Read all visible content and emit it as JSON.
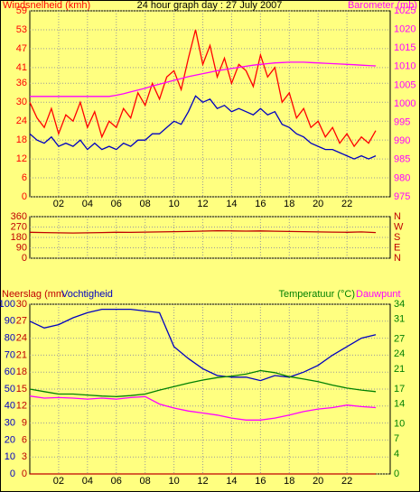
{
  "chart_data": [
    {
      "type": "line",
      "title": "24 hour graph day : 27 July 2007",
      "y_label": "Windsnelheid (kmh)",
      "y2_label": "Barometer (mb)",
      "x": [
        0,
        0.5,
        1,
        1.5,
        2,
        2.5,
        3,
        3.5,
        4,
        4.5,
        5,
        5.5,
        6,
        6.5,
        7,
        7.5,
        8,
        8.5,
        9,
        9.5,
        10,
        10.5,
        11,
        11.5,
        12,
        12.5,
        13,
        13.5,
        14,
        14.5,
        15,
        15.5,
        16,
        16.5,
        17,
        17.5,
        18,
        18.5,
        19,
        19.5,
        20,
        20.5,
        21,
        21.5,
        22,
        22.5,
        23,
        23.5,
        24
      ],
      "xlim": [
        0,
        25
      ],
      "xticks": [
        {
          "value": 2,
          "label": "02"
        },
        {
          "value": 4,
          "label": "04"
        },
        {
          "value": 6,
          "label": "06"
        },
        {
          "value": 8,
          "label": "08"
        },
        10,
        12,
        14,
        16,
        18,
        20,
        22
      ],
      "ylim": [
        0,
        59
      ],
      "yticks": [
        0,
        6,
        12,
        18,
        24,
        30,
        36,
        41,
        47,
        53,
        59
      ],
      "y2lim": [
        975,
        1025
      ],
      "y2ticks": [
        975,
        980,
        985,
        990,
        995,
        1000,
        1005,
        1010,
        1015,
        1020,
        1025
      ],
      "grid": true,
      "series": [
        {
          "color": "#ff0000",
          "values": [
            30,
            25,
            22,
            28,
            20,
            26,
            24,
            30,
            22,
            27,
            19,
            24,
            22,
            28,
            25,
            33,
            29,
            36,
            31,
            38,
            40,
            34,
            44,
            53,
            42,
            48,
            38,
            44,
            36,
            42,
            40,
            35,
            45,
            38,
            41,
            30,
            33,
            25,
            28,
            22,
            24,
            19,
            22,
            17,
            20,
            16,
            19,
            17,
            21
          ]
        },
        {
          "color": "#0000c0",
          "values": [
            20,
            18,
            17,
            19,
            16,
            17,
            16,
            18,
            15,
            17,
            15,
            16,
            15,
            17,
            16,
            18,
            18,
            20,
            20,
            22,
            24,
            23,
            27,
            32,
            30,
            31,
            28,
            29,
            27,
            28,
            27,
            26,
            28,
            26,
            27,
            23,
            22,
            20,
            19,
            17,
            16,
            15,
            15,
            14,
            13,
            12,
            13,
            12,
            13
          ]
        },
        {
          "color": "#ff00ff",
          "axis": "y2",
          "values": [
            1002,
            1002,
            1002,
            1002,
            1002,
            1002,
            1002,
            1002,
            1002,
            1002,
            1002,
            1002,
            1002.3,
            1002.7,
            1003.2,
            1003.7,
            1004.2,
            1004.8,
            1005.3,
            1005.8,
            1006.3,
            1006.8,
            1007.3,
            1007.7,
            1008.1,
            1008.5,
            1008.9,
            1009.2,
            1009.5,
            1009.8,
            1010.1,
            1010.4,
            1010.6,
            1010.8,
            1011,
            1011.1,
            1011.2,
            1011.2,
            1011.2,
            1011.1,
            1011,
            1010.9,
            1010.8,
            1010.7,
            1010.6,
            1010.5,
            1010.4,
            1010.3,
            1010.2
          ]
        }
      ]
    },
    {
      "type": "line",
      "x": [
        0,
        1,
        2,
        3,
        4,
        5,
        6,
        7,
        8,
        9,
        10,
        11,
        12,
        13,
        14,
        15,
        16,
        17,
        18,
        19,
        20,
        21,
        22,
        23,
        24
      ],
      "xlim": [
        0,
        25
      ],
      "ylim": [
        0,
        360
      ],
      "yticks": [
        0,
        90,
        180,
        270,
        360
      ],
      "y2lim": [
        0,
        360
      ],
      "y2ticks": [
        {
          "value": 0,
          "label": "N"
        },
        {
          "value": 90,
          "label": "E"
        },
        {
          "value": 180,
          "label": "S"
        },
        {
          "value": 270,
          "label": "W"
        },
        {
          "value": 360,
          "label": "N"
        }
      ],
      "grid": true,
      "series": [
        {
          "color": "#c00000",
          "values": [
            225,
            222,
            220,
            218,
            220,
            222,
            225,
            224,
            226,
            228,
            230,
            232,
            235,
            238,
            236,
            235,
            236,
            234,
            232,
            230,
            228,
            226,
            225,
            228,
            222
          ]
        }
      ]
    },
    {
      "type": "line",
      "x": [
        0,
        1,
        2,
        3,
        4,
        5,
        6,
        7,
        8,
        9,
        10,
        11,
        12,
        13,
        14,
        15,
        16,
        17,
        18,
        19,
        20,
        21,
        22,
        23,
        24
      ],
      "xlim": [
        0,
        25
      ],
      "xticks": [
        {
          "value": 2,
          "label": "02"
        },
        {
          "value": 4,
          "label": "04"
        },
        {
          "value": 6,
          "label": "06"
        },
        {
          "value": 8,
          "label": "08"
        },
        10,
        12,
        14,
        16,
        18,
        20,
        22
      ],
      "ylim": [
        0,
        30
      ],
      "yticks": [
        0,
        3,
        6,
        9,
        12,
        15,
        18,
        21,
        24,
        27,
        30
      ],
      "y2lim": [
        0,
        100
      ],
      "y2ticks": [
        0,
        10,
        20,
        30,
        40,
        50,
        60,
        70,
        80,
        90,
        100
      ],
      "y3lim": [
        0,
        34
      ],
      "y3ticks": [
        0,
        4,
        7,
        10,
        14,
        17,
        21,
        24,
        27,
        31,
        34
      ],
      "grid": true,
      "series": [
        {
          "name": "Neerslag (mm",
          "color": "#c00000",
          "values": [
            0,
            0,
            0,
            0,
            0,
            0,
            0,
            0,
            0,
            0,
            0,
            0,
            0,
            0,
            0,
            0,
            0,
            0,
            0,
            0,
            0,
            0,
            0,
            0,
            0
          ]
        },
        {
          "name": "Vochtigheid",
          "color": "#0000c0",
          "axis": "y2",
          "values": [
            90,
            86,
            88,
            92,
            95,
            97,
            97,
            97,
            96,
            95,
            75,
            68,
            62,
            58,
            57,
            57,
            55,
            58,
            57,
            60,
            64,
            70,
            75,
            80,
            82
          ]
        },
        {
          "name": "Temperatuur (°C)",
          "color": "#008000",
          "axis": "y3",
          "values": [
            17,
            16.5,
            16,
            16,
            15.8,
            15.6,
            15.5,
            15.7,
            16,
            16.8,
            17.5,
            18.2,
            18.8,
            19.3,
            19.6,
            20,
            20.7,
            20.3,
            19.5,
            19,
            18.5,
            17.8,
            17.2,
            16.8,
            16.5
          ]
        },
        {
          "name": "Dauwpunt",
          "color": "#ff00ff",
          "axis": "y3",
          "values": [
            15.6,
            15.2,
            15.3,
            15.2,
            15,
            15.2,
            15,
            15.3,
            15.5,
            14,
            13.2,
            12.6,
            12.2,
            11.8,
            11.2,
            10.8,
            10.8,
            11.2,
            11.8,
            12.5,
            13,
            13.3,
            13.8,
            13.5,
            13.3
          ]
        }
      ]
    }
  ]
}
